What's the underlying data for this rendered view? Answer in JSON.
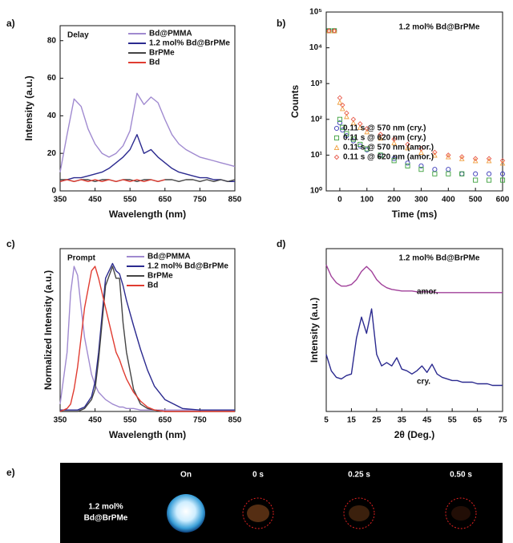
{
  "chart_data": [
    {
      "type": "line",
      "panel_label": "a)",
      "title": "Delay",
      "xlabel": "Wavelength (nm)",
      "ylabel": "Intensity (a.u.)",
      "xlim": [
        350,
        850
      ],
      "xticks": [
        350,
        450,
        550,
        650,
        750,
        850
      ],
      "ylim": [
        0,
        88
      ],
      "yticks": [
        0,
        20,
        40,
        60,
        80
      ],
      "legend": "upper right",
      "x": [
        350,
        370,
        390,
        410,
        430,
        450,
        470,
        490,
        510,
        530,
        550,
        570,
        590,
        610,
        630,
        650,
        670,
        690,
        710,
        730,
        750,
        770,
        790,
        810,
        830,
        850
      ],
      "series": [
        {
          "name": "Bd@PMMA",
          "color": "#a08ad0",
          "values": [
            10,
            30,
            49,
            45,
            33,
            25,
            20,
            18,
            20,
            24,
            32,
            52,
            46,
            50,
            47,
            38,
            30,
            25,
            22,
            20,
            18,
            17,
            16,
            15,
            14,
            13
          ]
        },
        {
          "name": "1.2 mol% Bd@BrPMe",
          "color": "#2b2a8f",
          "values": [
            5,
            6,
            7,
            7,
            8,
            9,
            10,
            12,
            15,
            18,
            22,
            30,
            20,
            22,
            18,
            15,
            12,
            10,
            9,
            8,
            7,
            7,
            6,
            6,
            5,
            5
          ]
        },
        {
          "name": "BrPMe",
          "color": "#444444",
          "values": [
            6,
            6,
            5,
            6,
            6,
            5,
            6,
            6,
            5,
            6,
            6,
            5,
            6,
            6,
            5,
            6,
            6,
            5,
            6,
            6,
            5,
            6,
            5,
            6,
            5,
            6
          ]
        },
        {
          "name": "Bd",
          "color": "#e03c31",
          "values": [
            5,
            6,
            5,
            6,
            5,
            6,
            5,
            6,
            5,
            6,
            5,
            6,
            5,
            6,
            5,
            6,
            null,
            null,
            null,
            null,
            null,
            null,
            null,
            null,
            null,
            null
          ]
        }
      ]
    },
    {
      "type": "scatter",
      "panel_label": "b)",
      "title": "1.2 mol% Bd@BrPMe",
      "xlabel": "Time (ms)",
      "ylabel": "Counts",
      "xlim": [
        -50,
        600
      ],
      "xticks": [
        0,
        100,
        200,
        300,
        400,
        500,
        600
      ],
      "ylim": [
        1,
        100000
      ],
      "y_log": true,
      "yticks": [
        {
          "value": 1,
          "label": "10⁰"
        },
        {
          "value": 10,
          "label": "10¹"
        },
        {
          "value": 100,
          "label": "10²"
        },
        {
          "value": 1000,
          "label": "10³"
        },
        {
          "value": 10000,
          "label": "10⁴"
        },
        {
          "value": 100000,
          "label": "10⁵"
        }
      ],
      "legend": "center right",
      "x": [
        -40,
        -20,
        0,
        10,
        25,
        50,
        75,
        100,
        150,
        200,
        250,
        300,
        350,
        400,
        450,
        500,
        550,
        600
      ],
      "series": [
        {
          "name": "0.11 s @ 570 nm (cry.)",
          "color": "#3a3ab8",
          "marker": "circle",
          "values": [
            30000,
            30000,
            80,
            50,
            35,
            25,
            18,
            14,
            10,
            8,
            6,
            5,
            4,
            4,
            3,
            3,
            3,
            3
          ]
        },
        {
          "name": "0.11 s @ 620 nm (cry.)",
          "color": "#3ca03c",
          "marker": "square",
          "values": [
            30000,
            30000,
            100,
            60,
            40,
            28,
            20,
            15,
            10,
            7,
            5,
            4,
            3,
            3,
            3,
            2,
            2,
            2
          ]
        },
        {
          "name": "0.11 s @ 570 nm (amor.)",
          "color": "#f0a040",
          "marker": "triangle",
          "values": [
            30000,
            30000,
            300,
            200,
            120,
            80,
            60,
            45,
            30,
            22,
            16,
            12,
            10,
            9,
            8,
            7,
            7,
            6
          ]
        },
        {
          "name": "0.11 s @ 620 nm (amor.)",
          "color": "#e85a4a",
          "marker": "diamond",
          "values": [
            30000,
            30000,
            400,
            250,
            150,
            100,
            75,
            55,
            38,
            28,
            20,
            15,
            12,
            10,
            9,
            8,
            8,
            7
          ]
        }
      ]
    },
    {
      "type": "line",
      "panel_label": "c)",
      "title": "Prompt",
      "xlabel": "Wavelength (nm)",
      "ylabel": "Normalized Intensity (a.u.)",
      "xlim": [
        350,
        850
      ],
      "xticks": [
        350,
        450,
        550,
        650,
        750,
        850
      ],
      "ylim": [
        0,
        1.1
      ],
      "legend": "upper right",
      "x": [
        350,
        370,
        380,
        390,
        400,
        410,
        420,
        440,
        450,
        460,
        480,
        500,
        510,
        520,
        530,
        540,
        560,
        580,
        600,
        620,
        650,
        700,
        750,
        800,
        850
      ],
      "series": [
        {
          "name": "Bd@PMMA",
          "color": "#a08ad0",
          "values": [
            0.05,
            0.4,
            0.8,
            0.98,
            0.92,
            0.7,
            0.5,
            0.25,
            0.18,
            0.13,
            0.08,
            0.05,
            0.04,
            0.03,
            0.03,
            0.02,
            0.02,
            0.01,
            0.01,
            0.01,
            0.01,
            0.01,
            0.01,
            0.01,
            0.01
          ]
        },
        {
          "name": "1.2 mol% Bd@BrPMe",
          "color": "#2b2a8f",
          "values": [
            0.01,
            0.01,
            0.01,
            0.01,
            0.01,
            0.02,
            0.03,
            0.1,
            0.2,
            0.4,
            0.9,
            1.0,
            0.95,
            0.93,
            0.85,
            0.75,
            0.58,
            0.42,
            0.28,
            0.17,
            0.08,
            0.02,
            0.01,
            0.01,
            0.01
          ]
        },
        {
          "name": "BrPMe",
          "color": "#444444",
          "values": [
            0,
            0,
            0,
            0,
            0,
            0.01,
            0.02,
            0.08,
            0.15,
            0.35,
            0.85,
            0.98,
            0.9,
            0.9,
            0.6,
            0.4,
            0.15,
            0.05,
            0.02,
            0.01,
            0,
            0,
            0,
            0,
            0
          ]
        },
        {
          "name": "Bd",
          "color": "#e03c31",
          "values": [
            0,
            0.02,
            0.05,
            0.15,
            0.3,
            0.5,
            0.7,
            0.95,
            0.98,
            0.9,
            0.7,
            0.5,
            0.4,
            0.35,
            0.28,
            0.22,
            0.13,
            0.07,
            0.03,
            0.01,
            0,
            0,
            0,
            0,
            0
          ]
        }
      ]
    },
    {
      "type": "line",
      "panel_label": "d)",
      "title": "1.2 mol% Bd@BrPMe",
      "xlabel": "2θ (Deg.)",
      "ylabel": "Intensity (a.u.)",
      "xlim": [
        5,
        75
      ],
      "xticks": [
        5,
        15,
        25,
        35,
        45,
        55,
        65,
        75
      ],
      "ylim": [
        0,
        10
      ],
      "annotations": [
        "amor.",
        "cry."
      ],
      "x": [
        5,
        7,
        9,
        11,
        13,
        15,
        17,
        19,
        21,
        23,
        25,
        27,
        29,
        31,
        33,
        35,
        37,
        39,
        41,
        43,
        45,
        47,
        49,
        51,
        53,
        55,
        57,
        59,
        61,
        63,
        65,
        67,
        69,
        71,
        73,
        75
      ],
      "series": [
        {
          "name": "amor.",
          "color": "#a0409a",
          "values": [
            9.0,
            8.3,
            7.9,
            7.7,
            7.7,
            7.8,
            8.1,
            8.6,
            8.9,
            8.6,
            8.1,
            7.8,
            7.6,
            7.5,
            7.45,
            7.4,
            7.4,
            7.4,
            7.35,
            7.35,
            7.35,
            7.35,
            7.3,
            7.3,
            7.3,
            7.3,
            7.3,
            7.3,
            7.3,
            7.3,
            7.3,
            7.3,
            7.3,
            7.3,
            7.3,
            7.3
          ]
        },
        {
          "name": "cry.",
          "color": "#2b2a8f",
          "values": [
            3.5,
            2.5,
            2.1,
            2.0,
            2.2,
            2.3,
            4.5,
            5.8,
            4.8,
            6.3,
            3.5,
            2.8,
            3.0,
            2.8,
            3.3,
            2.6,
            2.5,
            2.3,
            2.5,
            2.8,
            2.4,
            2.9,
            2.3,
            2.1,
            2.0,
            1.9,
            1.9,
            1.8,
            1.8,
            1.8,
            1.7,
            1.7,
            1.7,
            1.6,
            1.6,
            1.6
          ]
        }
      ]
    }
  ],
  "photo_panel": {
    "label": "e)",
    "sample": [
      "1.2  mol%",
      "Bd@BrPMe"
    ],
    "times": [
      "On",
      "0 s",
      "0.25 s",
      "0.50 s"
    ]
  }
}
